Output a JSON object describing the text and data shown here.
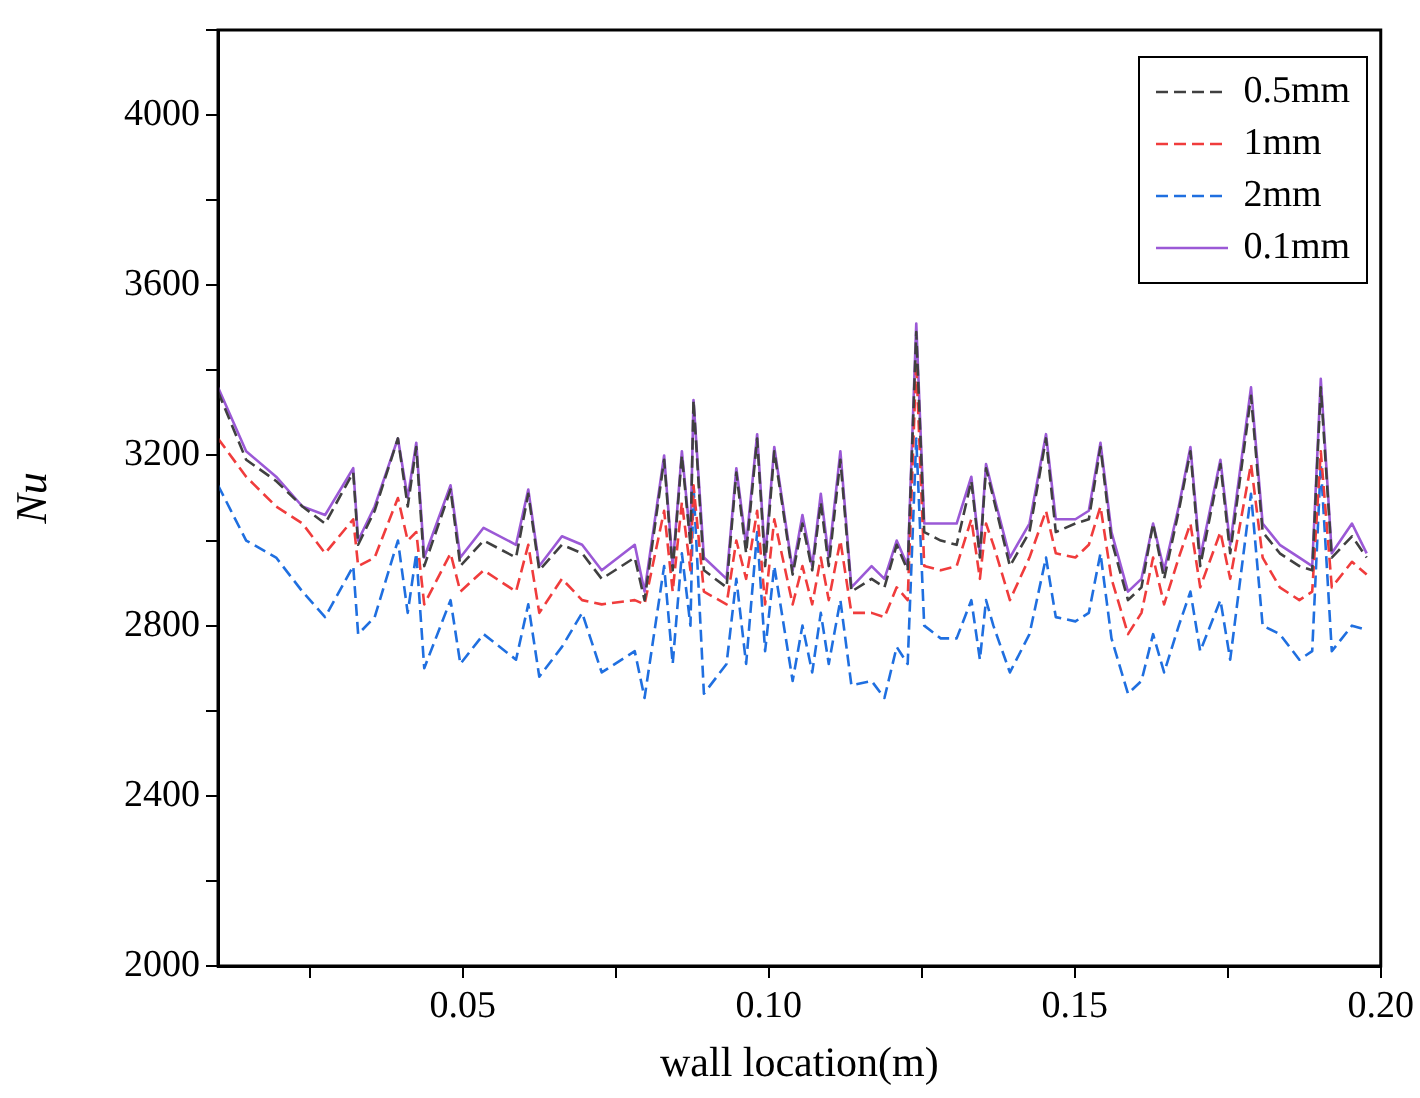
{
  "chart_data": {
    "type": "line",
    "xlabel": "wall location(m)",
    "ylabel": "Nu",
    "x": [
      0.01,
      0.0146,
      0.0195,
      0.0238,
      0.0275,
      0.0321,
      0.0329,
      0.0356,
      0.0394,
      0.041,
      0.0424,
      0.0437,
      0.048,
      0.0496,
      0.0534,
      0.0587,
      0.0607,
      0.0625,
      0.0662,
      0.0695,
      0.0727,
      0.0781,
      0.0797,
      0.0829,
      0.0843,
      0.0858,
      0.0872,
      0.0877,
      0.0894,
      0.0931,
      0.0947,
      0.0963,
      0.0981,
      0.0994,
      0.1009,
      0.1039,
      0.1055,
      0.1071,
      0.1085,
      0.1098,
      0.1117,
      0.1135,
      0.1168,
      0.1189,
      0.1209,
      0.1227,
      0.1241,
      0.1254,
      0.1281,
      0.1307,
      0.1331,
      0.1345,
      0.1355,
      0.1367,
      0.1394,
      0.1426,
      0.1453,
      0.1469,
      0.1501,
      0.1523,
      0.1542,
      0.156,
      0.1587,
      0.1609,
      0.1628,
      0.1646,
      0.167,
      0.1689,
      0.1705,
      0.1738,
      0.1754,
      0.1788,
      0.1807,
      0.1835,
      0.1867,
      0.1888,
      0.1902,
      0.192,
      0.1953,
      0.1977
    ],
    "series": [
      {
        "name": "0.5mm",
        "color": "#404040",
        "line_style": "dashed",
        "values": [
          3350,
          3190,
          3140,
          3080,
          3040,
          3160,
          2990,
          3070,
          3240,
          3080,
          3220,
          2940,
          3120,
          2940,
          3000,
          2960,
          3110,
          2930,
          2990,
          2970,
          2910,
          2960,
          2860,
          3190,
          2930,
          3200,
          2990,
          3330,
          2930,
          2890,
          3160,
          2970,
          3240,
          2940,
          3210,
          2920,
          3040,
          2930,
          3090,
          2940,
          3190,
          2880,
          2910,
          2890,
          2990,
          2930,
          3490,
          3020,
          3000,
          2990,
          3140,
          2960,
          3170,
          3100,
          2940,
          3020,
          3240,
          3020,
          3040,
          3050,
          3220,
          3000,
          2860,
          2890,
          3040,
          2910,
          3070,
          3210,
          2940,
          3180,
          2970,
          3340,
          3020,
          2970,
          2940,
          2930,
          3360,
          2960,
          3010,
          2960
        ]
      },
      {
        "name": "1mm",
        "color": "#f03c3c",
        "line_style": "dashed",
        "values": [
          3240,
          3150,
          3080,
          3040,
          2970,
          3050,
          2940,
          2960,
          3100,
          3000,
          3020,
          2850,
          2970,
          2880,
          2930,
          2880,
          2990,
          2830,
          2910,
          2860,
          2850,
          2860,
          2850,
          3070,
          2880,
          3090,
          2930,
          3130,
          2880,
          2850,
          3000,
          2910,
          3070,
          2850,
          3050,
          2850,
          2940,
          2850,
          2960,
          2860,
          3000,
          2830,
          2830,
          2820,
          2890,
          2860,
          3420,
          2940,
          2930,
          2940,
          3050,
          2910,
          3040,
          2990,
          2860,
          2960,
          3070,
          2970,
          2960,
          2990,
          3080,
          2910,
          2780,
          2830,
          2960,
          2850,
          2960,
          3040,
          2890,
          3020,
          2910,
          3180,
          2960,
          2890,
          2860,
          2880,
          3210,
          2890,
          2950,
          2920
        ]
      },
      {
        "name": "2mm",
        "color": "#1f6fe0",
        "line_style": "dashed",
        "values": [
          3130,
          3000,
          2960,
          2880,
          2820,
          2940,
          2780,
          2820,
          3000,
          2830,
          2970,
          2700,
          2860,
          2710,
          2780,
          2720,
          2850,
          2680,
          2750,
          2830,
          2690,
          2740,
          2630,
          2940,
          2710,
          2970,
          2800,
          3130,
          2640,
          2710,
          2910,
          2710,
          3020,
          2740,
          2940,
          2670,
          2800,
          2690,
          2830,
          2710,
          2860,
          2660,
          2670,
          2630,
          2750,
          2710,
          3240,
          2800,
          2770,
          2770,
          2860,
          2720,
          2860,
          2800,
          2690,
          2780,
          2960,
          2820,
          2810,
          2830,
          2970,
          2770,
          2640,
          2670,
          2780,
          2690,
          2800,
          2880,
          2740,
          2860,
          2720,
          3110,
          2800,
          2780,
          2720,
          2740,
          3180,
          2740,
          2800,
          2790
        ]
      },
      {
        "name": "0.1mm",
        "color": "#9b59d6",
        "line_style": "solid",
        "values": [
          3360,
          3210,
          3150,
          3080,
          3060,
          3170,
          3000,
          3080,
          3240,
          3100,
          3230,
          2960,
          3130,
          2960,
          3030,
          2990,
          3120,
          2940,
          3010,
          2990,
          2930,
          2990,
          2880,
          3200,
          2940,
          3210,
          3000,
          3330,
          2960,
          2910,
          3170,
          2990,
          3250,
          2960,
          3220,
          2930,
          3060,
          2940,
          3110,
          2960,
          3210,
          2890,
          2940,
          2910,
          3000,
          2940,
          3510,
          3040,
          3040,
          3040,
          3150,
          2970,
          3180,
          3110,
          2960,
          3040,
          3250,
          3050,
          3050,
          3070,
          3230,
          3020,
          2880,
          2910,
          3040,
          2930,
          3080,
          3220,
          2960,
          3190,
          2990,
          3360,
          3040,
          2990,
          2960,
          2940,
          3380,
          2970,
          3040,
          2970
        ]
      }
    ],
    "xlim": [
      0.01,
      0.2
    ],
    "xticks": [
      {
        "value": 0.025,
        "label": null
      },
      {
        "value": 0.05,
        "label": "0.05"
      },
      {
        "value": 0.075,
        "label": null
      },
      {
        "value": 0.1,
        "label": "0.10"
      },
      {
        "value": 0.125,
        "label": null
      },
      {
        "value": 0.15,
        "label": "0.15"
      },
      {
        "value": 0.175,
        "label": null
      },
      {
        "value": 0.2,
        "label": "0.20"
      }
    ],
    "ylim": [
      2000,
      4200
    ],
    "yticks": [
      2000,
      {
        "value": 2200,
        "label": null
      },
      2400,
      {
        "value": 2600,
        "label": null
      },
      2800,
      {
        "value": 3000,
        "label": null
      },
      3200,
      {
        "value": 3400,
        "label": null
      },
      3600,
      {
        "value": 3800,
        "label": null
      },
      4000,
      {
        "value": 4200,
        "label": null
      }
    ],
    "grid": false,
    "legend": "top right",
    "marker": "none"
  }
}
